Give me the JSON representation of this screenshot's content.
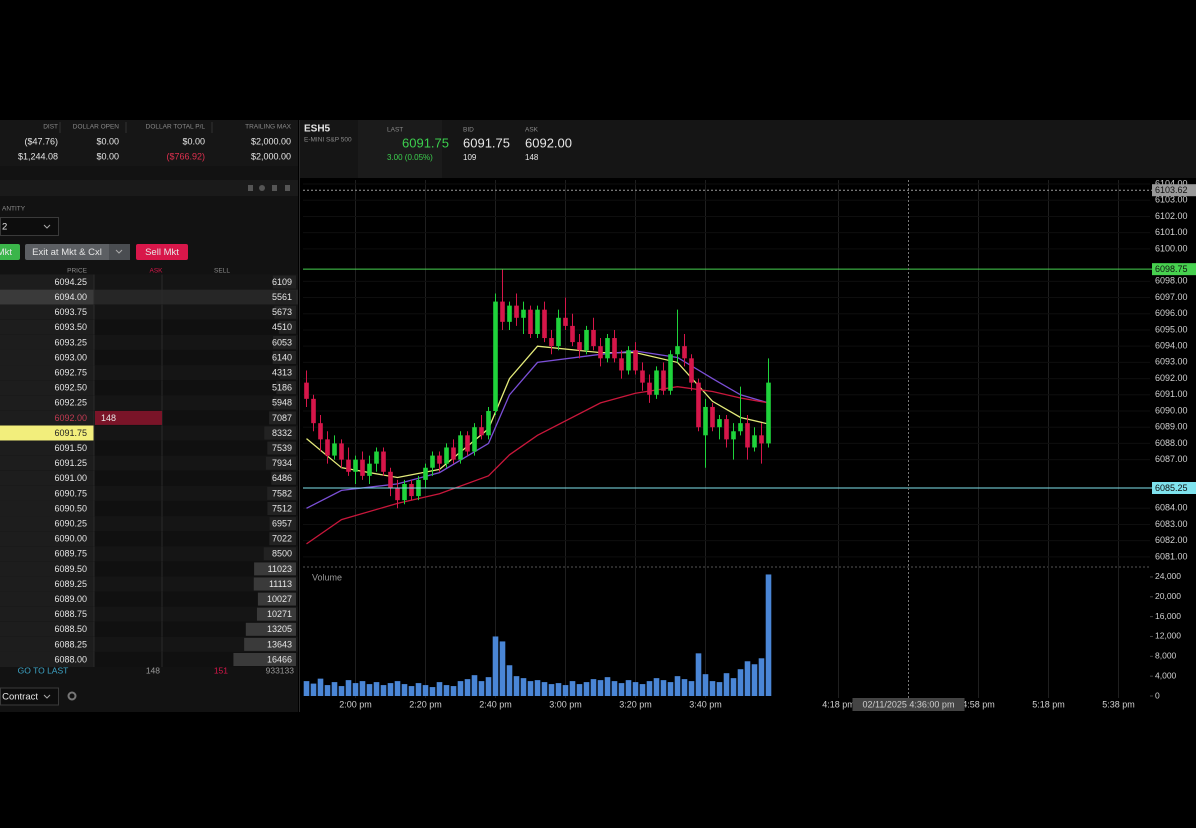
{
  "account": {
    "headers": [
      "DIST",
      "DOLLAR OPEN",
      "DOLLAR TOTAL P/L",
      "TRAILING MAX"
    ],
    "rows": [
      [
        "($47.76)",
        "$0.00",
        "$0.00",
        "$2,000.00"
      ],
      [
        "$1,244.08",
        "$0.00",
        "($766.92)",
        "$2,000.00"
      ]
    ]
  },
  "order_panel": {
    "quantity_label": "ANTITY",
    "quantity": "2",
    "buttons": [
      "Mkt",
      "Exit at Mkt & Cxl",
      "Sell Mkt"
    ]
  },
  "dom": {
    "headers": [
      "PRICE",
      "ASK",
      "SELL"
    ],
    "rows": [
      {
        "price": "6094.25",
        "sell": 6109
      },
      {
        "price": "6094.00",
        "sell": 5561,
        "state": "hover"
      },
      {
        "price": "6093.75",
        "sell": 5673
      },
      {
        "price": "6093.50",
        "sell": 4510
      },
      {
        "price": "6093.25",
        "sell": 6053
      },
      {
        "price": "6093.00",
        "sell": 6140
      },
      {
        "price": "6092.75",
        "sell": 4313
      },
      {
        "price": "6092.50",
        "sell": 5186
      },
      {
        "price": "6092.25",
        "sell": 5948
      },
      {
        "price": "6092.00",
        "ask": 148,
        "sell": 7087,
        "state": "best-ask"
      },
      {
        "price": "6091.75",
        "sell": 8332,
        "state": "last"
      },
      {
        "price": "6091.50",
        "sell": 7539
      },
      {
        "price": "6091.25",
        "sell": 7934
      },
      {
        "price": "6091.00",
        "sell": 6486
      },
      {
        "price": "6090.75",
        "sell": 7582
      },
      {
        "price": "6090.50",
        "sell": 7512
      },
      {
        "price": "6090.25",
        "sell": 6957
      },
      {
        "price": "6090.00",
        "sell": 7022
      },
      {
        "price": "6089.75",
        "sell": 8500
      },
      {
        "price": "6089.50",
        "sell": 11023
      },
      {
        "price": "6089.25",
        "sell": 11113
      },
      {
        "price": "6089.00",
        "sell": 10027
      },
      {
        "price": "6088.75",
        "sell": 10271
      },
      {
        "price": "6088.50",
        "sell": 13205
      },
      {
        "price": "6088.25",
        "sell": 13643
      },
      {
        "price": "6088.00",
        "sell": 16466
      }
    ],
    "footer": [
      "GO TO LAST",
      "148",
      "151",
      "933133"
    ],
    "contract": "Contract"
  },
  "symbol": {
    "name": "ESH5",
    "description": "E-MINI S&P 500",
    "last_label": "LAST",
    "last": "6091.75",
    "change": "3.00 (0.05%)",
    "bid_label": "BID",
    "bid": "6091.75",
    "bid_size": "109",
    "ask_label": "ASK",
    "ask": "6092.00",
    "ask_size": "148"
  },
  "chart_data": [
    {
      "type": "candlestick",
      "up_color": "#1fd33b",
      "down_color": "#d6164a",
      "open": [
        6091.75,
        6090.75,
        6089.25,
        6088.25,
        6087.25,
        6088.0,
        6087.0,
        6086.25,
        6087.0,
        6086.0,
        6086.75,
        6087.5,
        6086.25,
        6085.25,
        6084.5,
        6085.5,
        6084.75,
        6085.75,
        6086.5,
        6087.25,
        6086.75,
        6087.75,
        6087.0,
        6088.5,
        6087.5,
        6089.0,
        6088.5,
        6090.0,
        6096.75,
        6095.5,
        6096.5,
        6095.75,
        6096.25,
        6094.75,
        6096.25,
        6094.5,
        6094.0,
        6095.75,
        6095.25,
        6094.25,
        6093.75,
        6095.0,
        6094.0,
        6093.25,
        6094.5,
        6093.25,
        6092.5,
        6093.75,
        6092.5,
        6091.75,
        6091.0,
        6092.5,
        6091.25,
        6093.5,
        6094.0,
        6093.25,
        6091.75,
        6088.5,
        6090.25,
        6089.0,
        6089.5,
        6088.25,
        6088.75,
        6089.25,
        6087.75,
        6088.5,
        6088.0
      ],
      "high": [
        6092.5,
        6091.0,
        6089.75,
        6088.75,
        6088.5,
        6088.25,
        6087.75,
        6087.25,
        6087.5,
        6087.25,
        6087.75,
        6087.75,
        6086.5,
        6085.75,
        6085.75,
        6085.75,
        6086.0,
        6086.75,
        6087.5,
        6087.5,
        6088.0,
        6088.25,
        6088.75,
        6088.75,
        6089.25,
        6089.75,
        6090.25,
        6097.25,
        6098.75,
        6096.75,
        6097.25,
        6096.75,
        6096.5,
        6096.5,
        6096.75,
        6095.0,
        6096.25,
        6097.0,
        6096.0,
        6094.75,
        6095.25,
        6095.75,
        6094.5,
        6094.75,
        6095.0,
        6093.75,
        6094.0,
        6094.25,
        6093.0,
        6092.25,
        6092.75,
        6093.0,
        6093.75,
        6096.25,
        6094.75,
        6093.5,
        6092.0,
        6090.75,
        6090.5,
        6089.75,
        6089.75,
        6089.25,
        6091.5,
        6089.75,
        6089.0,
        6089.25,
        6093.25
      ],
      "low": [
        6090.25,
        6088.75,
        6087.5,
        6086.75,
        6087.0,
        6086.5,
        6086.0,
        6085.5,
        6085.75,
        6085.5,
        6086.25,
        6086.0,
        6084.75,
        6084.0,
        6084.25,
        6084.5,
        6084.5,
        6085.25,
        6086.0,
        6086.25,
        6086.5,
        6086.75,
        6086.75,
        6087.25,
        6087.25,
        6088.25,
        6088.25,
        6089.75,
        6095.0,
        6095.0,
        6095.25,
        6094.75,
        6094.5,
        6094.5,
        6094.25,
        6093.5,
        6093.75,
        6095.0,
        6094.0,
        6093.25,
        6093.5,
        6093.75,
        6092.75,
        6093.0,
        6093.0,
        6092.0,
        6092.25,
        6092.25,
        6091.25,
        6090.5,
        6090.75,
        6091.0,
        6091.0,
        6093.0,
        6092.75,
        6091.25,
        6088.75,
        6086.5,
        6088.75,
        6088.25,
        6087.75,
        6087.0,
        6088.5,
        6087.0,
        6087.5,
        6086.75,
        6087.75
      ],
      "close": [
        6090.75,
        6089.25,
        6088.25,
        6087.25,
        6088.0,
        6087.0,
        6086.25,
        6087.0,
        6086.0,
        6086.75,
        6087.5,
        6086.25,
        6085.25,
        6084.5,
        6085.5,
        6084.75,
        6085.75,
        6086.5,
        6087.25,
        6086.75,
        6087.75,
        6087.0,
        6088.5,
        6087.5,
        6089.0,
        6088.5,
        6090.0,
        6096.75,
        6095.5,
        6096.5,
        6095.75,
        6096.25,
        6094.75,
        6096.25,
        6094.5,
        6094.0,
        6095.75,
        6095.25,
        6094.25,
        6093.75,
        6095.0,
        6094.0,
        6093.25,
        6094.5,
        6093.25,
        6092.5,
        6093.75,
        6092.5,
        6091.75,
        6091.0,
        6092.5,
        6091.25,
        6093.5,
        6094.0,
        6093.25,
        6091.75,
        6089.0,
        6090.25,
        6089.0,
        6089.5,
        6088.25,
        6088.75,
        6089.25,
        6087.75,
        6088.5,
        6088.0,
        6091.75
      ],
      "lines": [
        {
          "color": "#e4ea7a",
          "x": [
            0,
            5,
            13,
            19,
            26,
            29,
            33,
            42,
            47,
            53,
            58,
            62,
            66
          ],
          "values": [
            6088.3,
            6086.5,
            6085.9,
            6086.4,
            6088.9,
            6092.0,
            6094.0,
            6093.6,
            6093.6,
            6093.0,
            6090.6,
            6089.6,
            6089.2
          ]
        },
        {
          "color": "#7b4fd6",
          "x": [
            0,
            5,
            13,
            19,
            26,
            29,
            33,
            42,
            47,
            53,
            58,
            62,
            66
          ],
          "values": [
            6084.0,
            6085.1,
            6085.5,
            6086.2,
            6088.0,
            6091.0,
            6093.0,
            6093.5,
            6093.7,
            6093.3,
            6092.0,
            6091.0,
            6090.5
          ]
        },
        {
          "color": "#c8173b",
          "x": [
            0,
            5,
            13,
            19,
            26,
            29,
            33,
            42,
            47,
            53,
            58,
            62,
            66
          ],
          "values": [
            6081.8,
            6083.3,
            6084.3,
            6084.9,
            6086.0,
            6087.3,
            6088.5,
            6090.5,
            6091.1,
            6091.5,
            6091.2,
            6090.8,
            6090.5
          ]
        }
      ],
      "levels": [
        {
          "value": 6103.62,
          "color": "#9a9a9a",
          "dashed": true
        },
        {
          "value": 6098.75,
          "color": "#47d14f",
          "dashed": false
        },
        {
          "value": 6085.25,
          "color": "#7fe3ee",
          "dashed": false
        }
      ],
      "crosshair": {
        "x": 86,
        "label": "02/11/2025 4:36:00 pm"
      },
      "xlim": [
        -0.5,
        120.5
      ],
      "xticks": [
        {
          "value": 7,
          "label": "2:00 pm"
        },
        {
          "value": 17,
          "label": "2:20 pm"
        },
        {
          "value": 27,
          "label": "2:40 pm"
        },
        {
          "value": 37,
          "label": "3:00 pm"
        },
        {
          "value": 47,
          "label": "3:20 pm"
        },
        {
          "value": 57,
          "label": "3:40 pm"
        },
        {
          "value": 76,
          "label": "4:18 pm"
        },
        {
          "value": 96,
          "label": "4:58 pm"
        },
        {
          "value": 106,
          "label": "5:18 pm"
        },
        {
          "value": 116,
          "label": "5:38 pm"
        }
      ],
      "ylim": [
        6080.5,
        6104.25
      ],
      "yticks": [
        {
          "value": 6104,
          "label": "6104.00"
        },
        {
          "value": 6103,
          "label": "6103.00"
        },
        {
          "value": 6102,
          "label": "6102.00"
        },
        {
          "value": 6101,
          "label": "6101.00"
        },
        {
          "value": 6100,
          "label": "6100.00"
        },
        {
          "value": 6098,
          "label": "6098.00"
        },
        {
          "value": 6097,
          "label": "6097.00"
        },
        {
          "value": 6096,
          "label": "6096.00"
        },
        {
          "value": 6095,
          "label": "6095.00"
        },
        {
          "value": 6094,
          "label": "6094.00"
        },
        {
          "value": 6093,
          "label": "6093.00"
        },
        {
          "value": 6092,
          "label": "6092.00"
        },
        {
          "value": 6091,
          "label": "6091.00"
        },
        {
          "value": 6090,
          "label": "6090.00"
        },
        {
          "value": 6089,
          "label": "6089.00"
        },
        {
          "value": 6088,
          "label": "6088.00"
        },
        {
          "value": 6087,
          "label": "6087.00"
        },
        {
          "value": 6084,
          "label": "6084.00"
        },
        {
          "value": 6083,
          "label": "6083.00"
        },
        {
          "value": 6082,
          "label": "6082.00"
        },
        {
          "value": 6081,
          "label": "6081.00"
        }
      ],
      "grid": true
    },
    {
      "type": "bar",
      "title": "Volume",
      "color": "#4a86d6",
      "values": [
        3000,
        2500,
        3500,
        2200,
        2800,
        2000,
        3200,
        2600,
        3000,
        2400,
        2800,
        2200,
        2600,
        3000,
        2400,
        2000,
        2600,
        2200,
        1800,
        2800,
        2200,
        2000,
        3000,
        3400,
        4200,
        3000,
        3800,
        12000,
        11000,
        6200,
        4000,
        3600,
        3000,
        3200,
        2800,
        2400,
        2600,
        2200,
        3000,
        2400,
        2800,
        3400,
        3200,
        3800,
        3000,
        2600,
        3200,
        2800,
        2400,
        3000,
        3600,
        3200,
        2800,
        4000,
        3400,
        3000,
        8600,
        4400,
        3000,
        2800,
        4600,
        3600,
        5400,
        7000,
        6400,
        7600,
        24500
      ],
      "xlim": [
        -0.5,
        120.5
      ],
      "ylim": [
        0,
        25400
      ],
      "yticks": [
        {
          "value": 24000,
          "label": "24,000"
        },
        {
          "value": 20000,
          "label": "20,000"
        },
        {
          "value": 16000,
          "label": "16,000"
        },
        {
          "value": 12000,
          "label": "12,000"
        },
        {
          "value": 8000,
          "label": "8,000"
        },
        {
          "value": 4000,
          "label": "4,000"
        },
        0
      ]
    }
  ]
}
